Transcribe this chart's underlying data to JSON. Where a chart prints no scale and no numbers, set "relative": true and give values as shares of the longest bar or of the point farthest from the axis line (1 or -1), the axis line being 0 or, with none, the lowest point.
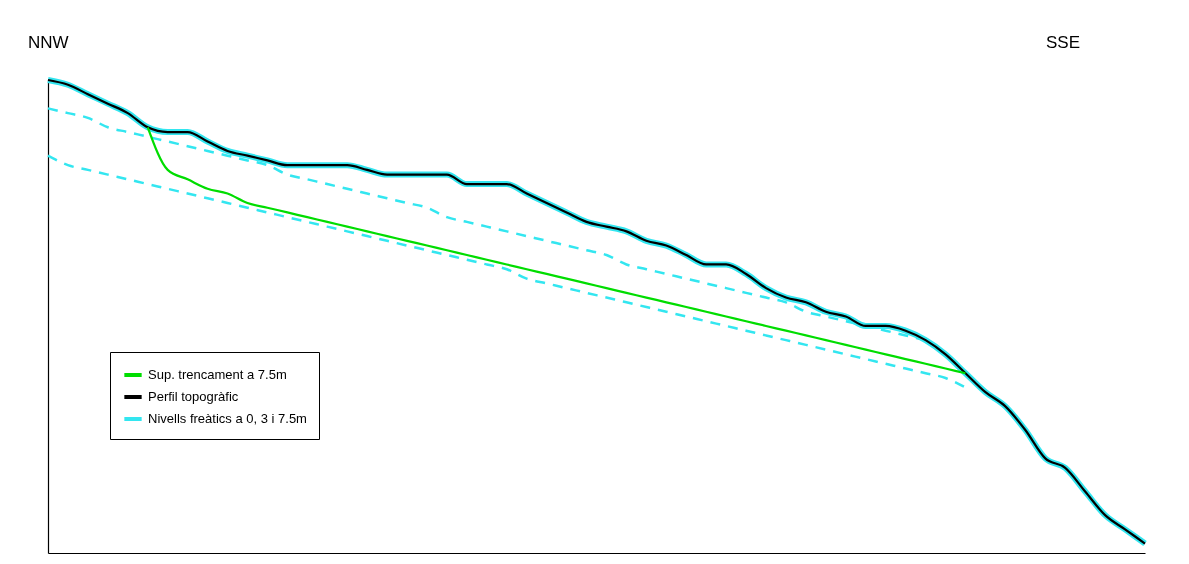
{
  "chart_data": {
    "type": "line",
    "relative": true,
    "legend": "bottom left",
    "grid": false,
    "annotations": [
      "NNW",
      "SSE"
    ],
    "categories": [
      null,
      null,
      null,
      null,
      null,
      null,
      null,
      null,
      null,
      null,
      null,
      null,
      null,
      null,
      null,
      null,
      null,
      null,
      null,
      null,
      null,
      null,
      null,
      null,
      null,
      null,
      null,
      null,
      null,
      null,
      null,
      null,
      null,
      null,
      null,
      null,
      null,
      null,
      null,
      null,
      null,
      null,
      null,
      null,
      null,
      null,
      null,
      null,
      null,
      null,
      null,
      null,
      null,
      null,
      null,
      null
    ],
    "series": [
      {
        "name": "Sup. trencament a 7.5m",
        "color": "#00dd00",
        "values": [
          null,
          null,
          null,
          null,
          null,
          0.9,
          0.81,
          0.79,
          0.77,
          0.76,
          0.74,
          0.73,
          0.72,
          0.71,
          0.7,
          0.69,
          0.68,
          0.67,
          0.66,
          0.65,
          0.64,
          0.63,
          0.62,
          0.61,
          0.6,
          0.59,
          0.58,
          0.57,
          0.56,
          0.55,
          0.54,
          0.53,
          0.52,
          0.51,
          0.5,
          0.49,
          0.48,
          0.47,
          0.46,
          0.45,
          0.44,
          0.43,
          0.42,
          0.41,
          0.4,
          0.39,
          0.38,
          null,
          null,
          null,
          null,
          null,
          null,
          null,
          null,
          null
        ]
      },
      {
        "name": "Perfil topogràfic",
        "color": "#000000",
        "values": [
          1.0,
          0.99,
          0.97,
          0.95,
          0.93,
          0.9,
          0.89,
          0.89,
          0.87,
          0.85,
          0.84,
          0.83,
          0.82,
          0.82,
          0.82,
          0.82,
          0.81,
          0.8,
          0.8,
          0.8,
          0.8,
          0.78,
          0.78,
          0.78,
          0.76,
          0.74,
          0.72,
          0.7,
          0.69,
          0.68,
          0.66,
          0.65,
          0.63,
          0.61,
          0.61,
          0.59,
          0.56,
          0.54,
          0.53,
          0.51,
          0.5,
          0.48,
          0.48,
          0.47,
          0.45,
          0.42,
          0.38,
          0.34,
          0.31,
          0.26,
          0.2,
          0.18,
          0.13,
          0.08,
          0.05,
          0.02
        ]
      },
      {
        "name": "Nivells freàtics a 0, 3 i 7.5m",
        "color": "#33e6f0",
        "values": [
          1.0,
          0.99,
          0.97,
          0.95,
          0.93,
          0.9,
          0.89,
          0.89,
          0.87,
          0.85,
          0.84,
          0.83,
          0.82,
          0.82,
          0.82,
          0.82,
          0.81,
          0.8,
          0.8,
          0.8,
          0.8,
          0.78,
          0.78,
          0.78,
          0.76,
          0.74,
          0.72,
          0.7,
          0.69,
          0.68,
          0.66,
          0.65,
          0.63,
          0.61,
          0.61,
          0.59,
          0.56,
          0.54,
          0.53,
          0.51,
          0.5,
          0.48,
          0.48,
          0.47,
          0.45,
          0.42,
          0.38,
          0.34,
          0.31,
          0.26,
          0.2,
          0.18,
          0.13,
          0.08,
          0.05,
          0.02
        ]
      },
      {
        "color": "#33e6f0",
        "line_style": "dashed",
        "values": [
          0.94,
          0.93,
          0.92,
          0.9,
          0.89,
          0.88,
          0.87,
          0.86,
          0.85,
          0.84,
          0.83,
          0.82,
          0.8,
          0.79,
          0.78,
          0.77,
          0.76,
          0.75,
          0.74,
          0.73,
          0.71,
          0.7,
          0.69,
          0.68,
          0.67,
          0.66,
          0.65,
          0.64,
          0.63,
          0.61,
          0.6,
          0.59,
          0.58,
          0.57,
          0.56,
          0.55,
          0.54,
          0.53,
          0.51,
          0.5,
          0.49,
          0.48,
          0.47,
          0.46,
          0.45,
          null,
          null,
          null,
          null,
          null,
          null,
          null,
          null,
          null,
          null,
          null
        ]
      },
      {
        "color": "#33e6f0",
        "line_style": "dashed",
        "values": [
          0.84,
          0.82,
          0.81,
          0.8,
          0.79,
          0.78,
          0.77,
          0.76,
          0.75,
          0.74,
          0.73,
          0.72,
          0.71,
          0.7,
          0.69,
          0.68,
          0.67,
          0.66,
          0.65,
          0.64,
          0.63,
          0.62,
          0.61,
          0.6,
          0.58,
          0.57,
          0.56,
          0.55,
          0.54,
          0.53,
          0.52,
          0.51,
          0.5,
          0.49,
          0.48,
          0.47,
          0.46,
          0.45,
          0.44,
          0.43,
          0.42,
          0.41,
          0.4,
          0.39,
          0.38,
          0.37,
          0.35,
          null,
          null,
          null,
          null,
          null,
          null,
          null,
          null,
          null
        ]
      }
    ]
  }
}
